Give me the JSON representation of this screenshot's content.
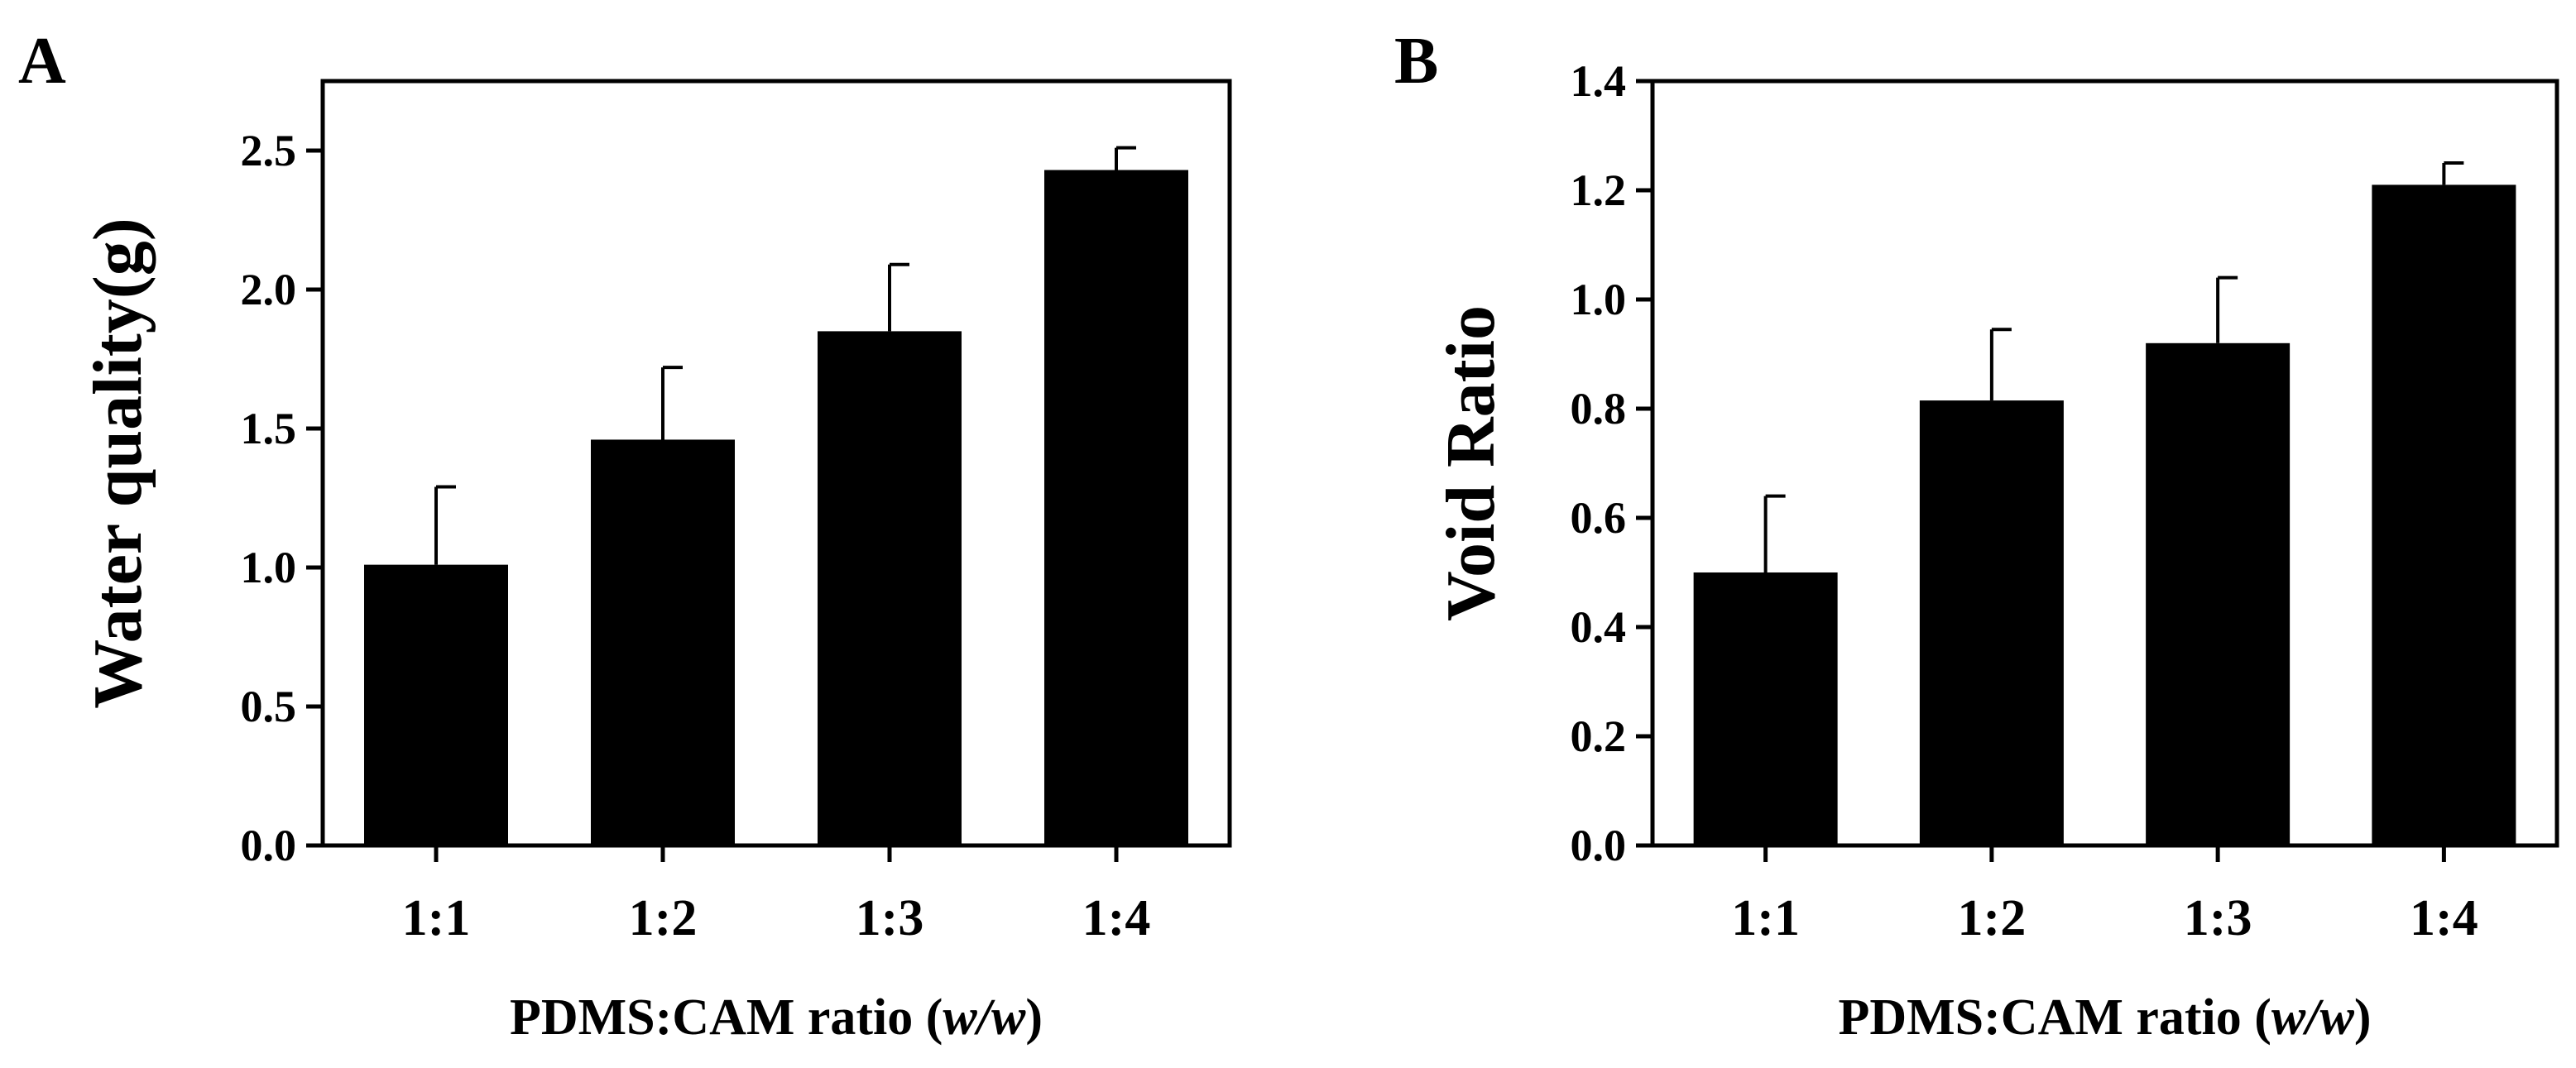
{
  "chart_data": [
    {
      "panel": "A",
      "type": "bar",
      "categories": [
        "1:1",
        "1:2",
        "1:3",
        "1:4"
      ],
      "values": [
        1.01,
        1.46,
        1.85,
        2.43
      ],
      "errors": [
        0.28,
        0.26,
        0.24,
        0.08
      ],
      "ylabel": "Water quality(g)",
      "xlabel": "PDMS:CAM ratio (",
      "xlabel_italic": "w/w",
      "xlabel_close": ")",
      "ylim": [
        0,
        2.75
      ],
      "yticks": [
        0.0,
        0.5,
        1.0,
        1.5,
        2.0,
        2.5
      ],
      "ytick_labels": [
        "0.0",
        "0.5",
        "1.0",
        "1.5",
        "2.0",
        "2.5"
      ],
      "bar_color": "#000000"
    },
    {
      "panel": "B",
      "type": "bar",
      "categories": [
        "1:1",
        "1:2",
        "1:3",
        "1:4"
      ],
      "values": [
        0.5,
        0.815,
        0.92,
        1.21
      ],
      "errors": [
        0.14,
        0.13,
        0.12,
        0.04
      ],
      "ylabel": "Void Ratio",
      "xlabel": "PDMS:CAM ratio (",
      "xlabel_italic": "w/w",
      "xlabel_close": ")",
      "ylim": [
        0,
        1.4
      ],
      "yticks": [
        0.0,
        0.2,
        0.4,
        0.6,
        0.8,
        1.0,
        1.2,
        1.4
      ],
      "ytick_labels": [
        "0.0",
        "0.2",
        "0.4",
        "0.6",
        "0.8",
        "1.0",
        "1.2",
        "1.4"
      ],
      "bar_color": "#000000"
    }
  ]
}
